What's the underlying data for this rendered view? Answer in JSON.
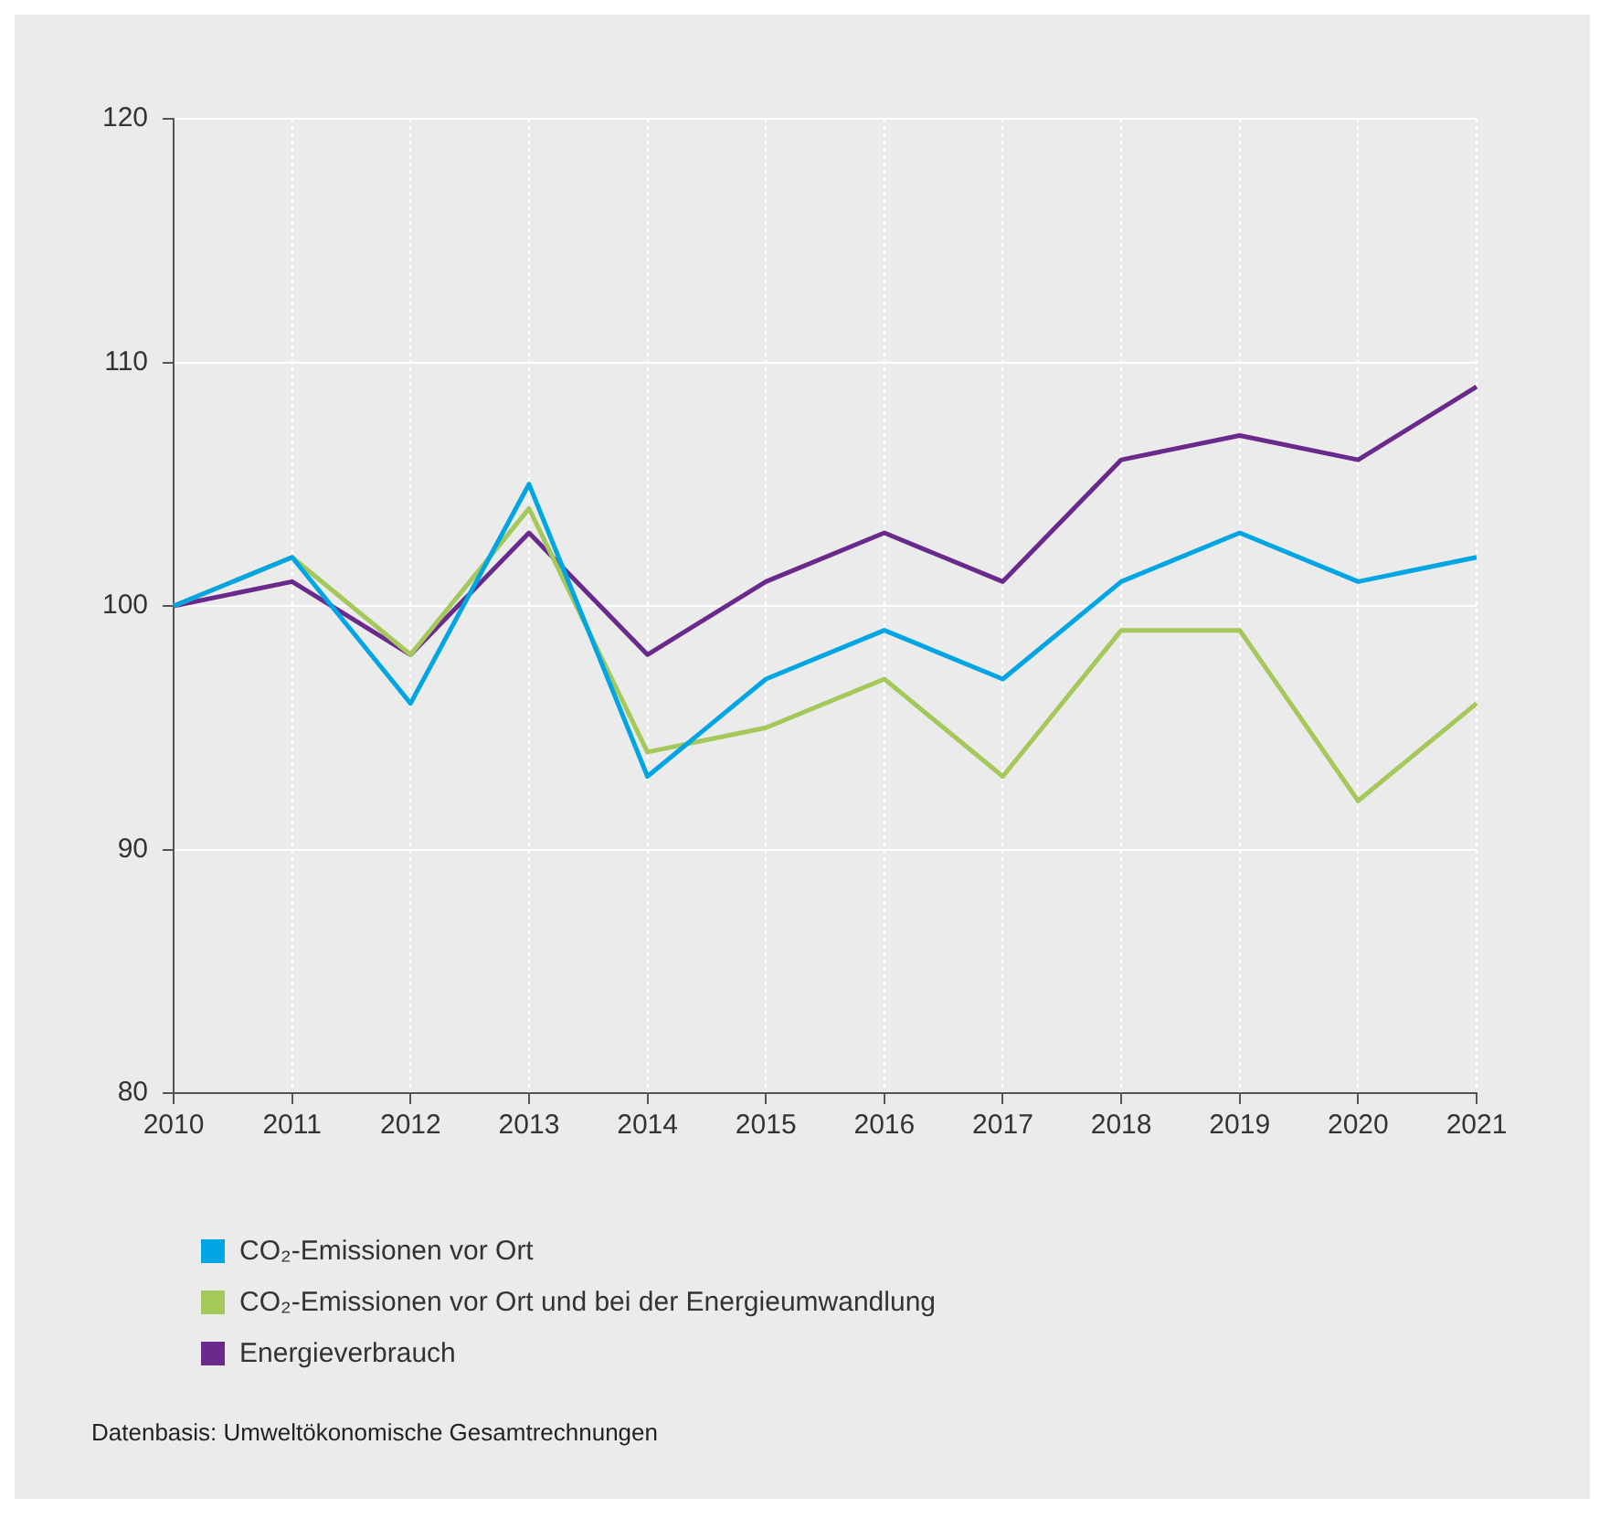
{
  "chart_data": {
    "type": "line",
    "categories": [
      "2010",
      "2011",
      "2012",
      "2013",
      "2014",
      "2015",
      "2016",
      "2017",
      "2018",
      "2019",
      "2020",
      "2021"
    ],
    "series": [
      {
        "name": "CO₂-Emissionen vor Ort",
        "color": "#00a5e3",
        "values": [
          100,
          102,
          96,
          105,
          93,
          97,
          99,
          97,
          101,
          103,
          101,
          102
        ]
      },
      {
        "name": "CO₂-Emissionen vor Ort und bei der Energieumwandlung",
        "color": "#a5c85a",
        "values": [
          100,
          102,
          98,
          104,
          94,
          95,
          97,
          93,
          99,
          99,
          92,
          96
        ]
      },
      {
        "name": "Energieverbrauch",
        "color": "#6a2a8c",
        "values": [
          100,
          101,
          98,
          103,
          98,
          101,
          103,
          101,
          106,
          107,
          106,
          109
        ]
      }
    ],
    "ylim": [
      80,
      120
    ],
    "yticks": [
      80,
      90,
      100,
      110,
      120
    ],
    "grid": true,
    "legend": "bottom left",
    "marker": "none",
    "line_style": "solid",
    "annotations": [
      "Datenbasis: Umweltökonomische Gesamtrechnungen"
    ]
  }
}
